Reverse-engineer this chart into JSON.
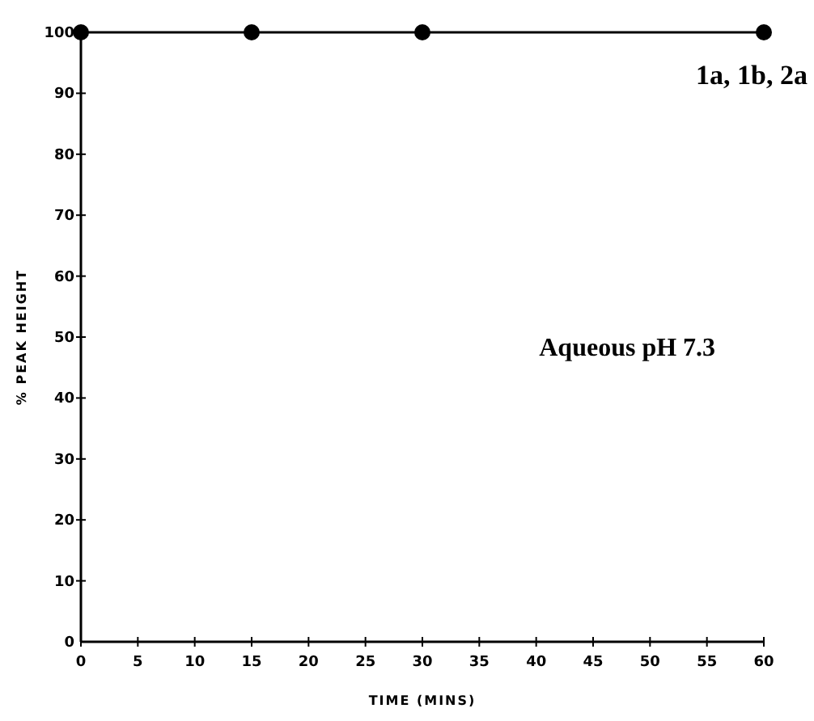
{
  "chart_data": {
    "type": "line",
    "xlabel": "TIME (MINS)",
    "ylabel": "% PEAK HEIGHT",
    "x": [
      0,
      15,
      30,
      60
    ],
    "xlim": [
      0,
      60
    ],
    "xticks": [
      0,
      5,
      10,
      15,
      20,
      25,
      30,
      35,
      40,
      45,
      50,
      55,
      60
    ],
    "ylim": [
      0,
      100
    ],
    "yticks": [
      0,
      10,
      20,
      30,
      40,
      50,
      60,
      70,
      80,
      90,
      100
    ],
    "series": [
      {
        "color": "#000000",
        "values": [
          100,
          100,
          100,
          100
        ],
        "marker": "circle"
      }
    ],
    "annotations": [
      "1a, 1b, 2a",
      "Aqueous pH 7.3"
    ],
    "line_style": "solid",
    "grid": false
  }
}
